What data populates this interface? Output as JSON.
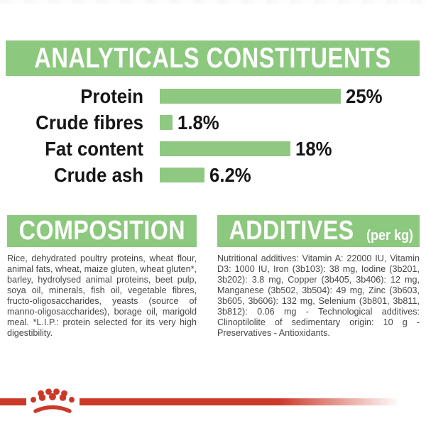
{
  "colors": {
    "banner_green": "#8CC87E",
    "bar_green": "#8FC981",
    "brand_red": "#CB3929",
    "banner_text": "#FFFFFF",
    "chart_text": "#161616",
    "body_text": "#474747"
  },
  "analyticals": {
    "title": "ANALYTICALS CONSTITUENTS",
    "chart_data": {
      "type": "bar",
      "orientation": "horizontal",
      "categories": [
        "Protein",
        "Crude fibres",
        "Fat content",
        "Crude ash"
      ],
      "values": [
        25,
        1.8,
        18,
        6.2
      ],
      "value_labels": [
        "25%",
        "1.8%",
        "18%",
        "6.2%"
      ],
      "xlim": [
        0,
        25
      ],
      "grid": false,
      "legend": false
    }
  },
  "composition": {
    "title": "COMPOSITION",
    "body": "Rice, dehydrated poultry proteins, wheat flour, animal fats, wheat, maize gluten, wheat gluten*, barley, hydrolysed animal proteins, beet pulp, soya oil, minerals, fish oil, vegetable fibres, fructo-oligosaccharides, yeasts (source of manno-oligosaccharides), borage oil, marigold meal. *L.I.P.: protein selected for its very high digestibility."
  },
  "additives": {
    "title": "ADDITIVES",
    "title_suffix": "(per kg)",
    "body": "Nutritional additives: Vitamin A: 22000 IU, Vitamin D3: 1000 IU, Iron (3b103): 38 mg, Iodine (3b201, 3b202): 3.8 mg, Copper (3b405, 3b406): 12 mg, Manganese (3b502, 3b504): 49 mg, Zinc (3b603, 3b605, 3b606): 132 mg, Selenium (3b801, 3b811, 3b812): 0.06 mg - Technological additives: Clinoptilolite of sedimentary origin: 10 g - Preservatives - Antioxidants."
  },
  "footer": {
    "logo": "royal-canin-crown"
  }
}
